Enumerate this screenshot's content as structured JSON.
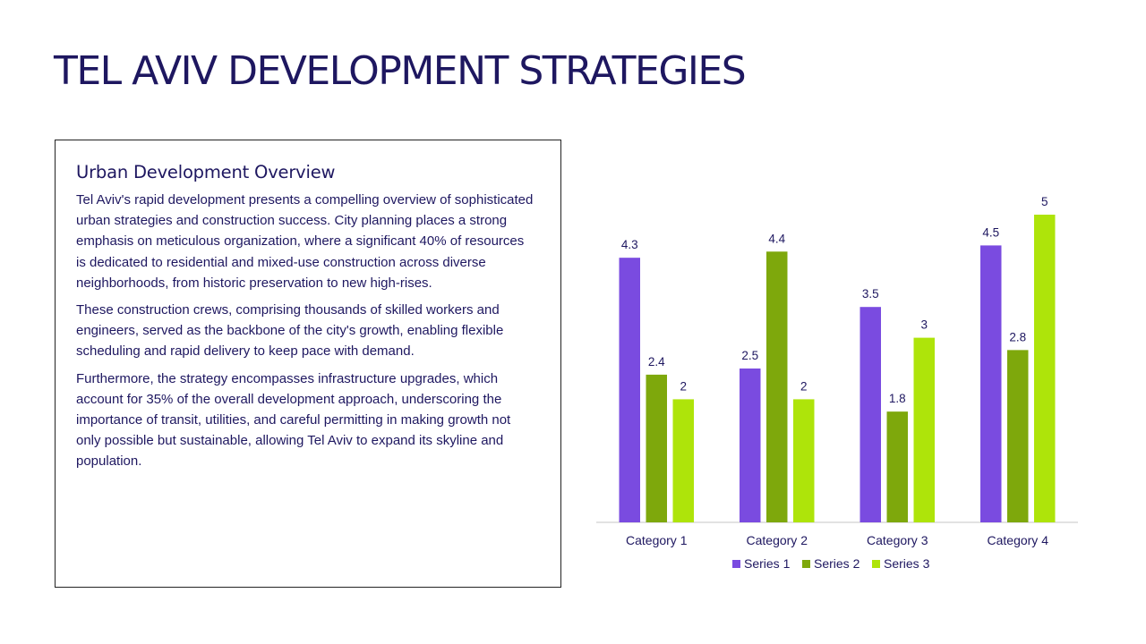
{
  "slide": {
    "title": "TEL AVIV DEVELOPMENT STRATEGIES"
  },
  "text_box": {
    "heading": "Urban Development Overview",
    "paragraphs": [
      "Tel Aviv's rapid development presents a compelling overview of sophisticated urban strategies and construction success. City planning places a strong emphasis on meticulous organization, where a significant 40% of resources is dedicated to residential and mixed-use construction across diverse neighborhoods, from historic preservation to new high-rises.",
      "These construction crews, comprising thousands of skilled workers and engineers, served as the backbone of the city's growth, enabling flexible scheduling and rapid delivery to keep pace with demand.",
      "Furthermore, the strategy encompasses infrastructure upgrades, which account for 35% of the overall development approach, underscoring the importance of transit, utilities, and careful permitting in making growth not only possible but sustainable, allowing Tel Aviv to expand its skyline and population."
    ]
  },
  "chart_data": {
    "type": "bar",
    "categories": [
      "Category 1",
      "Category 2",
      "Category 3",
      "Category 4"
    ],
    "series": [
      {
        "name": "Series 1",
        "values": [
          4.3,
          2.5,
          3.5,
          4.5
        ],
        "color": "#7a4be0"
      },
      {
        "name": "Series 2",
        "values": [
          2.4,
          4.4,
          1.8,
          2.8
        ],
        "color": "#7ea80c"
      },
      {
        "name": "Series 3",
        "values": [
          2,
          2,
          3,
          5
        ],
        "color": "#aee40a"
      }
    ],
    "ylim": [
      0,
      5
    ],
    "grid": false,
    "data_labels": true,
    "legend_position": "bottom",
    "axis_color": "#d9d9d9"
  }
}
